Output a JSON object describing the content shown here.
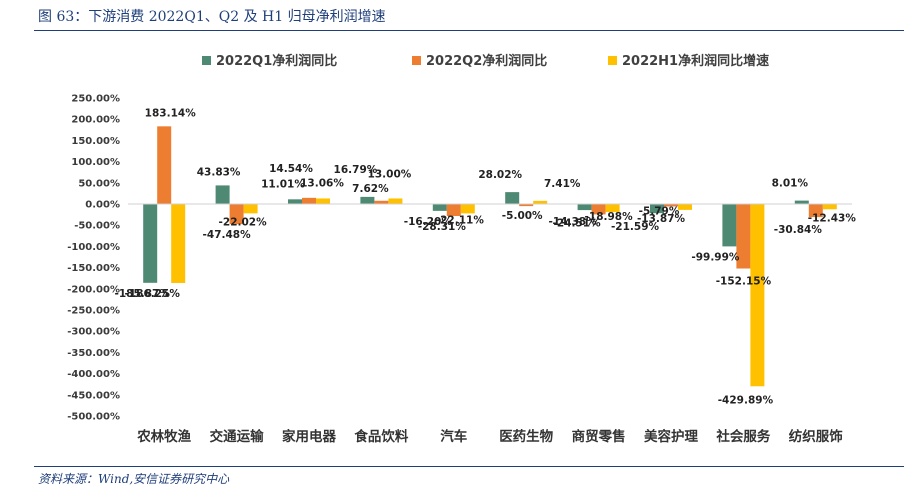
{
  "figure": {
    "title": "图 63：下游消费 2022Q1、Q2 及 H1 归母净利润增速",
    "source": "资料来源：Wind,安信证券研究中心"
  },
  "colors": {
    "series": [
      "#4e8a73",
      "#ed7d31",
      "#ffc000"
    ],
    "axis_text": "#3a3a3a",
    "label_text": "#222222",
    "rule": "#1f3f7a"
  },
  "chart_data": {
    "type": "bar",
    "categories": [
      "农林牧渔",
      "交通运输",
      "家用电器",
      "食品饮料",
      "汽车",
      "医药生物",
      "商贸零售",
      "美容护理",
      "社会服务",
      "纺织服饰"
    ],
    "series": [
      {
        "name": "2022Q1净利润同比",
        "values": [
          -185.87,
          43.83,
          11.01,
          16.79,
          -16.2,
          28.02,
          -14.38,
          -21.59,
          -99.99,
          8.01
        ],
        "labels": [
          "-185.87%",
          "43.83%",
          "11.01%",
          "16.79%",
          "-16.20%",
          "28.02%",
          "-14.38%",
          "-21.59%",
          "-99.99%",
          "8.01%"
        ]
      },
      {
        "name": "2022Q2净利润同比",
        "values": [
          183.14,
          -47.48,
          14.54,
          7.62,
          -28.31,
          -5.0,
          -24.51,
          -5.79,
          -152.15,
          -30.84
        ],
        "labels": [
          "183.14%",
          "-47.48%",
          "14.54%",
          "7.62%",
          "-28.31%",
          "-5.00%",
          "-24.51%",
          "-5.79%",
          "-152.15%",
          "-30.84%"
        ]
      },
      {
        "name": "2022H1净利润同比增速",
        "values": [
          -186.25,
          -22.02,
          13.06,
          13.0,
          -22.11,
          7.41,
          -18.98,
          -13.87,
          -429.89,
          -12.43
        ],
        "labels": [
          "-186.25%",
          "-22.02%",
          "13.06%",
          "13.00%",
          "-22.11%",
          "7.41%",
          "-18.98%",
          "-13.87%",
          "-429.89%",
          "-12.43%"
        ]
      }
    ],
    "yticks": [
      "250.00%",
      "200.00%",
      "150.00%",
      "100.00%",
      "50.00%",
      "0.00%",
      "-50.00%",
      "-100.00%",
      "-150.00%",
      "-200.00%",
      "-250.00%",
      "-300.00%",
      "-350.00%",
      "-400.00%",
      "-450.00%",
      "-500.00%"
    ],
    "ylim": [
      -500,
      250
    ],
    "ystep": 50,
    "legend_position": "top",
    "grid": false
  }
}
